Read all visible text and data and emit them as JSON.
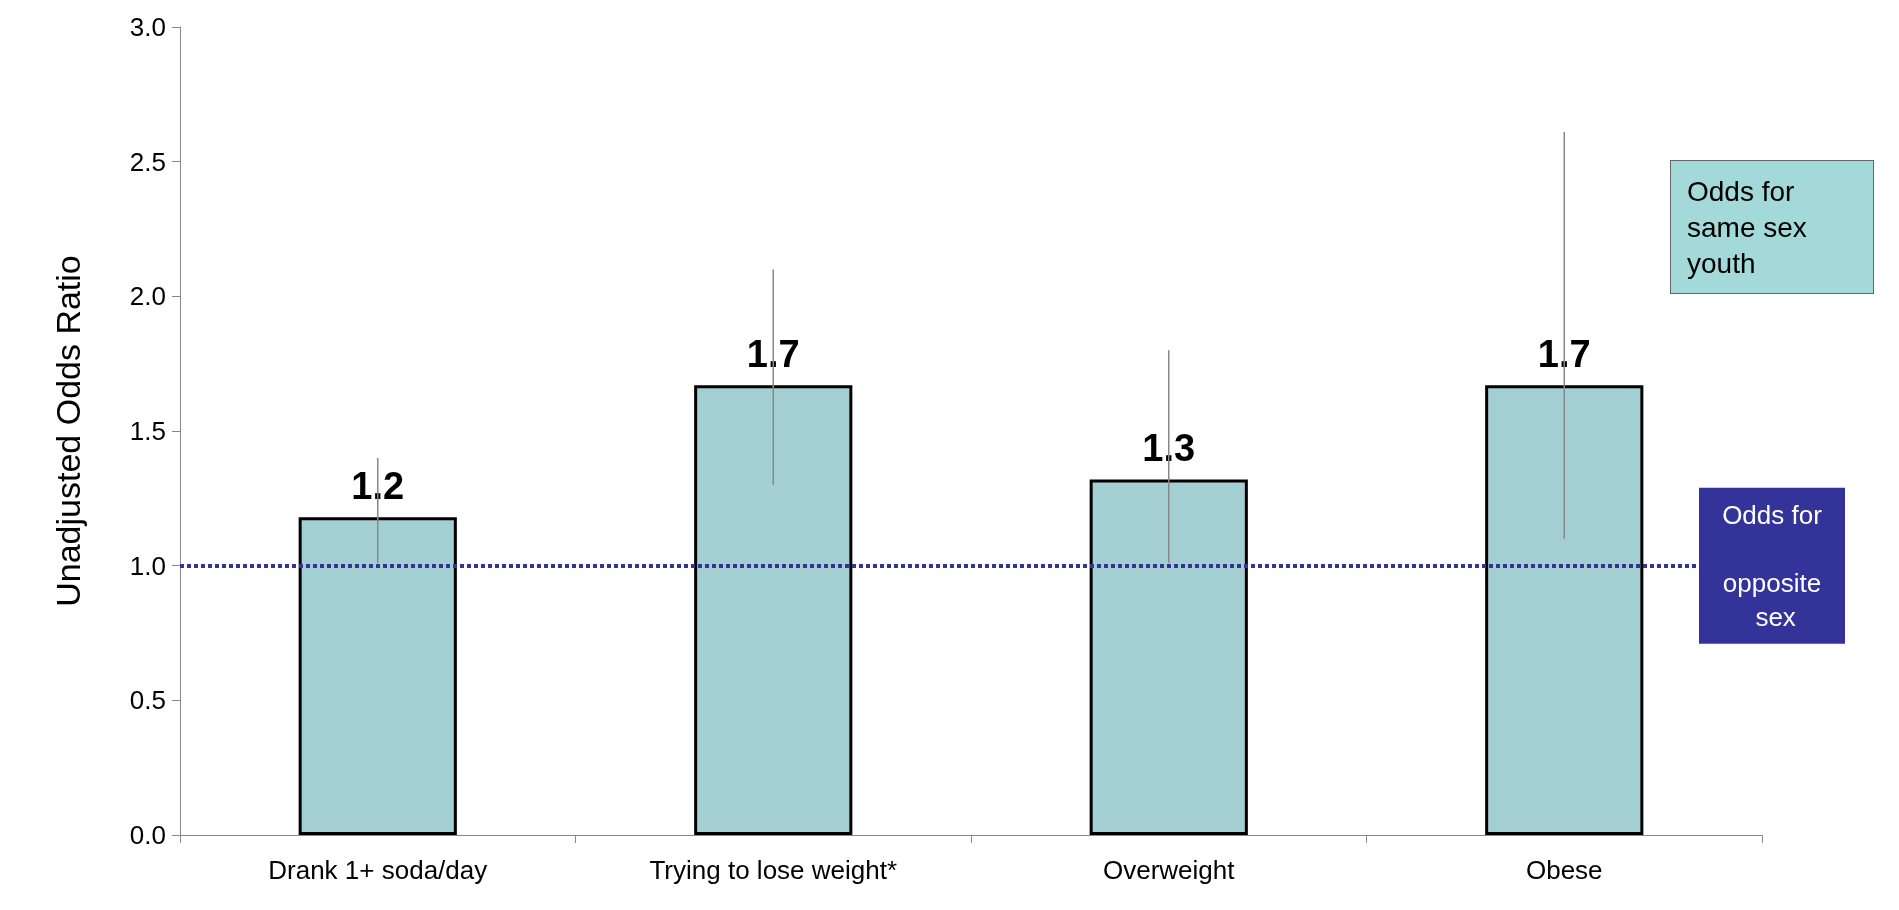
{
  "chart_data": {
    "type": "bar",
    "ylabel": "Unadjusted Odds Ratio",
    "categories": [
      "Drank 1+ soda/day",
      "Trying to lose weight*",
      "Overweight",
      "Obese"
    ],
    "values": [
      1.18,
      1.67,
      1.32,
      1.67
    ],
    "value_labels": [
      "1.2",
      "1.7",
      "1.3",
      "1.7"
    ],
    "errors": [
      [
        1.01,
        1.4
      ],
      [
        1.3,
        2.1
      ],
      [
        1.01,
        1.8
      ],
      [
        1.1,
        2.61
      ]
    ],
    "color": "#a3cfd3",
    "ylim": [
      0,
      3
    ],
    "yticks": [
      {
        "value": 0,
        "label": "0.0"
      },
      {
        "value": 0.5,
        "label": "0.5"
      },
      {
        "value": 1,
        "label": "1.0"
      },
      {
        "value": 1.5,
        "label": "1.5"
      },
      {
        "value": 2,
        "label": "2.0"
      },
      {
        "value": 2.5,
        "label": "2.5"
      },
      {
        "value": 3,
        "label": "3.0"
      }
    ],
    "ref_lines": [
      {
        "axis": "y",
        "value": 1,
        "label": "Odds for opposite sex",
        "color": "#333399",
        "line_style": "dotted"
      }
    ],
    "annotations": [
      "Odds for same sex youth"
    ],
    "grid": false
  }
}
